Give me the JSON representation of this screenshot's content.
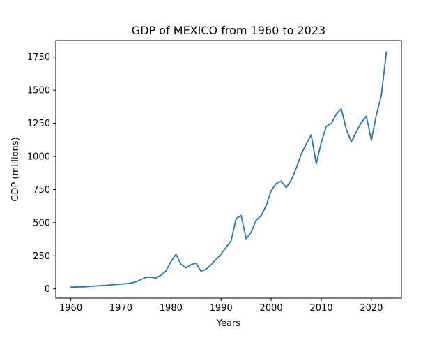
{
  "chart_data": {
    "type": "line",
    "title": "GDP of MEXICO from 1960 to 2023",
    "xlabel": "Years",
    "ylabel": "GDP (millions)",
    "xlim": [
      1957,
      2026
    ],
    "ylim": [
      -70,
      1875
    ],
    "x_ticks": [
      1960,
      1970,
      1980,
      1990,
      2000,
      2010,
      2020
    ],
    "y_ticks": [
      0,
      250,
      500,
      750,
      1000,
      1250,
      1500,
      1750
    ],
    "grid": false,
    "legend": "none",
    "series": [
      {
        "color": "#1f77b4",
        "x": [
          1960,
          1961,
          1962,
          1963,
          1964,
          1965,
          1966,
          1967,
          1968,
          1969,
          1970,
          1971,
          1972,
          1973,
          1974,
          1975,
          1976,
          1977,
          1978,
          1979,
          1980,
          1981,
          1982,
          1983,
          1984,
          1985,
          1986,
          1987,
          1988,
          1989,
          1990,
          1991,
          1992,
          1993,
          1994,
          1995,
          1996,
          1997,
          1998,
          1999,
          2000,
          2001,
          2002,
          2003,
          2004,
          2005,
          2006,
          2007,
          2008,
          2009,
          2010,
          2011,
          2012,
          2013,
          2014,
          2015,
          2016,
          2017,
          2018,
          2019,
          2020,
          2021,
          2022,
          2023
        ],
        "values": [
          13,
          14,
          15,
          16,
          20,
          22,
          25,
          27,
          30,
          33,
          36,
          39,
          44,
          53,
          70,
          88,
          89,
          82,
          103,
          135,
          206,
          262,
          186,
          158,
          183,
          195,
          133,
          147,
          183,
          222,
          262,
          314,
          363,
          530,
          554,
          379,
          426,
          518,
          553,
          628,
          741,
          796,
          813,
          765,
          821,
          910,
          1018,
          1094,
          1162,
          944,
          1105,
          1227,
          1248,
          1320,
          1359,
          1205,
          1110,
          1186,
          1256,
          1305,
          1121,
          1314,
          1463,
          1789
        ]
      }
    ]
  }
}
